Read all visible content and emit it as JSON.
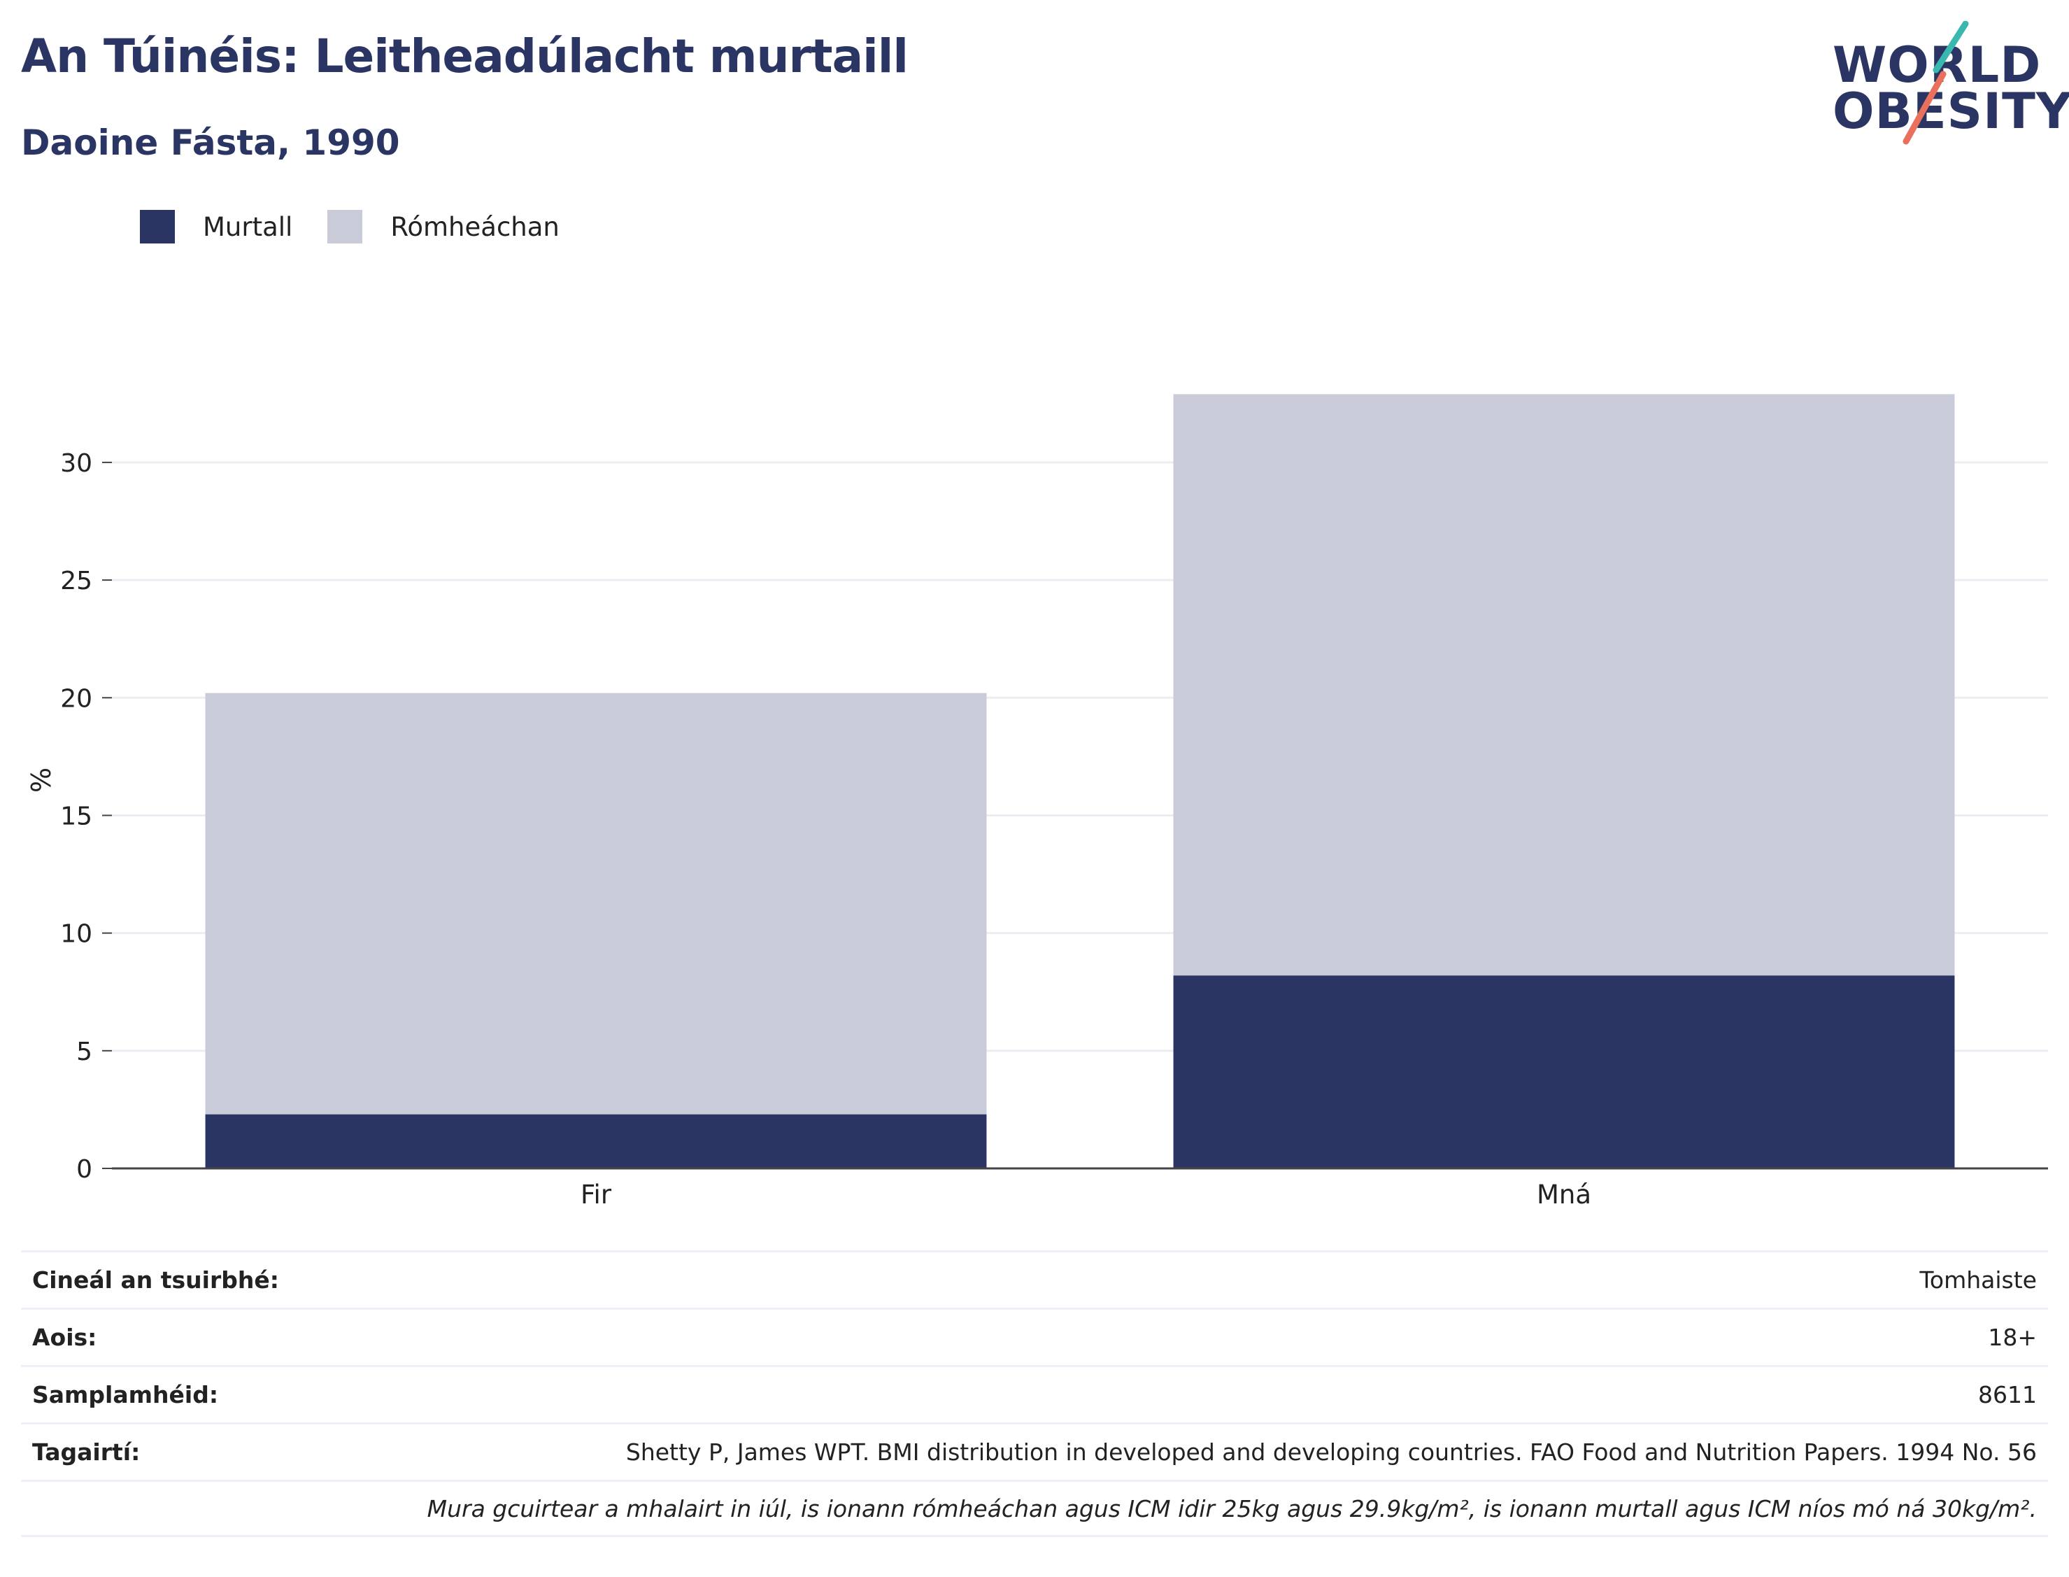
{
  "header": {
    "title": "An Túinéis: Leitheadúlacht murtaill",
    "subtitle": "Daoine Fásta, 1990"
  },
  "logo": {
    "line1": "WORLD",
    "line2": "OBESITY",
    "colors": {
      "teal": "#3ab8b0",
      "coral": "#e8705d",
      "navy": "#2b3563"
    }
  },
  "legend": [
    {
      "label": "Murtall",
      "color": "#2b3563"
    },
    {
      "label": "Rómheáchan",
      "color": "#c9ccd8"
    }
  ],
  "chart_data": {
    "type": "bar",
    "stacked": true,
    "categories": [
      "Fir",
      "Mná"
    ],
    "series": [
      {
        "name": "Murtall",
        "values": [
          2.3,
          8.2
        ],
        "color": "#2b3563"
      },
      {
        "name": "Rómheáchan",
        "values": [
          17.9,
          24.7
        ],
        "color": "#c9ccd8"
      }
    ],
    "ylabel": "%",
    "xlabel": "",
    "ylim": [
      0,
      33
    ],
    "yticks": [
      0,
      5,
      10,
      15,
      20,
      25,
      30
    ],
    "grid": true,
    "legend_position": "top-left"
  },
  "info": [
    {
      "key": "Cineál an tsuirbhé:",
      "value": "Tomhaiste"
    },
    {
      "key": "Aois:",
      "value": "18+"
    },
    {
      "key": "Samplamhéid:",
      "value": "8611"
    },
    {
      "key": "Tagairtí:",
      "value": "Shetty P, James WPT. BMI distribution in developed and developing countries. FAO Food and Nutrition Papers. 1994 No. 56"
    }
  ],
  "note": "Mura gcuirtear a mhalairt in iúl, is ionann rómheáchan agus ICM idir 25kg agus 29.9kg/m², is ionann murtall agus ICM níos mó ná 30kg/m²."
}
